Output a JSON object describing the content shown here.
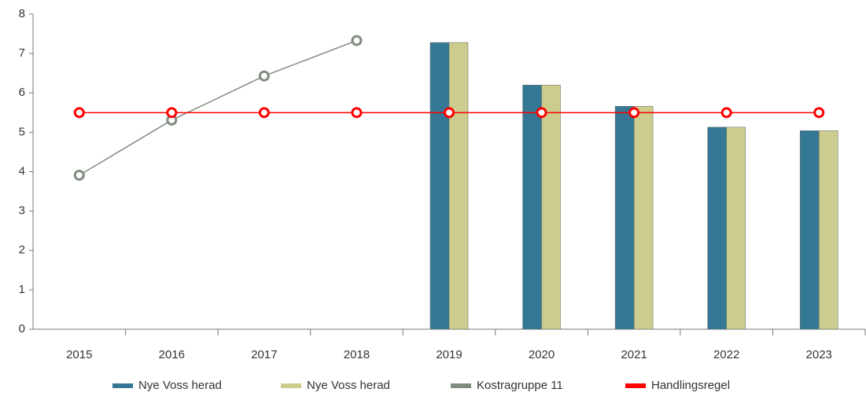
{
  "chart_data": {
    "type": "bar",
    "categories": [
      "2015",
      "2016",
      "2017",
      "2018",
      "2019",
      "2020",
      "2021",
      "2022",
      "2023"
    ],
    "series": [
      {
        "name": "Nye Voss herad",
        "type": "bar",
        "color": "#347895",
        "values": [
          null,
          null,
          null,
          null,
          7.28,
          6.2,
          5.66,
          5.13,
          5.04
        ]
      },
      {
        "name": "Nye Voss herad",
        "type": "bar",
        "color": "#cccc8f",
        "values": [
          null,
          null,
          null,
          null,
          7.28,
          6.2,
          5.66,
          5.13,
          5.04
        ]
      },
      {
        "name": "Kostragruppe 11",
        "type": "line",
        "color": "#7f8c7f",
        "values": [
          3.91,
          5.31,
          6.43,
          7.33,
          null,
          null,
          null,
          null,
          null
        ]
      },
      {
        "name": "Handlingsregel",
        "type": "line",
        "color": "#ff0000",
        "values": [
          5.5,
          5.5,
          5.5,
          5.5,
          5.5,
          5.5,
          5.5,
          5.5,
          5.5
        ]
      }
    ],
    "ylim": [
      0,
      8
    ],
    "yticks": [
      0,
      1,
      2,
      3,
      4,
      5,
      6,
      7,
      8
    ],
    "grid": false,
    "legend": "bottom"
  }
}
